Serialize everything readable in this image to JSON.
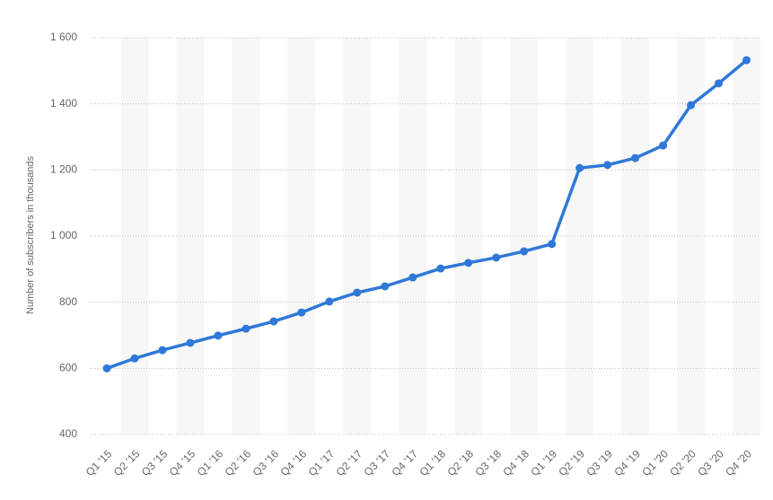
{
  "chart_data": {
    "type": "line",
    "y_axis_label": "Number of subscribers in thousands",
    "categories": [
      "Q1 '15",
      "Q2 '15",
      "Q3 '15",
      "Q4 '15",
      "Q1 '16",
      "Q2 '16",
      "Q3 '16",
      "Q4 '16",
      "Q1 '17",
      "Q2 '17",
      "Q3 '17",
      "Q4 '17",
      "Q1 '18",
      "Q2 '18",
      "Q3 '18",
      "Q4 '18",
      "Q1 '19",
      "Q2 '19",
      "Q3 '19",
      "Q4 '19",
      "Q1 '20",
      "Q2 '20",
      "Q3 '20",
      "Q4 '20"
    ],
    "values": [
      600,
      630,
      655,
      677,
      699,
      720,
      742,
      769,
      802,
      829,
      848,
      875,
      902,
      919,
      935,
      954,
      976,
      1206,
      1215,
      1236,
      1274,
      1396,
      1462,
      1532
    ],
    "color": "#2f78d8",
    "ylim": [
      400,
      1600
    ],
    "yticks": [
      400,
      600,
      800,
      {
        "value": 1000,
        "label": "1 000"
      },
      {
        "value": 1200,
        "label": "1 200"
      },
      {
        "value": 1400,
        "label": "1 400"
      },
      {
        "value": 1600,
        "label": "1 600"
      }
    ],
    "grid": true
  }
}
